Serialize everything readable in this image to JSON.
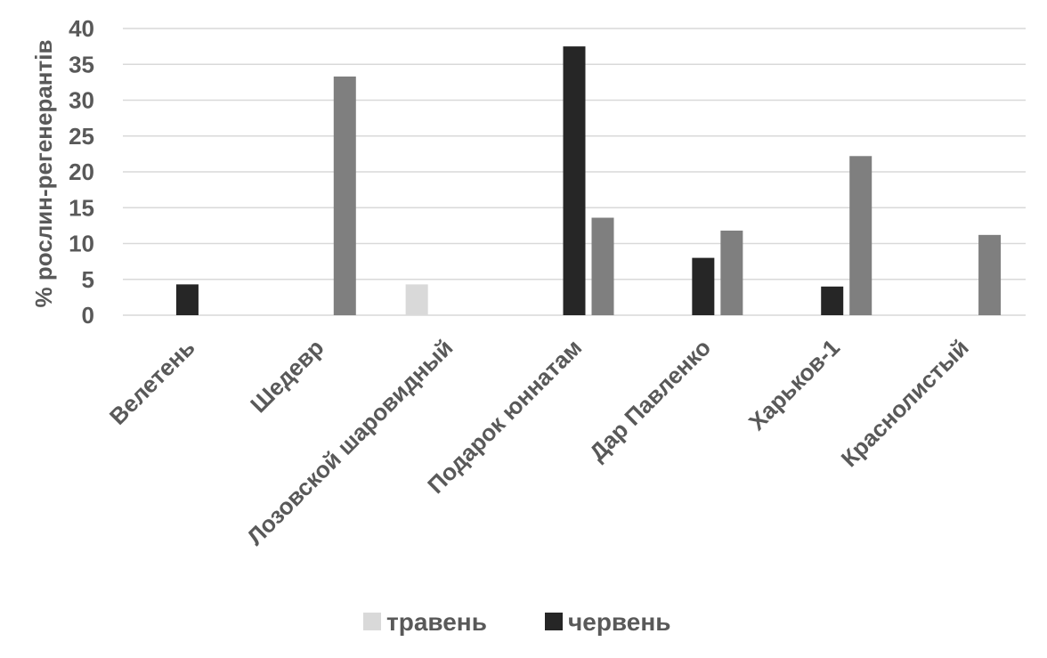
{
  "chart_data": {
    "type": "bar",
    "title": "",
    "xlabel": "",
    "ylabel": "% рослин-регенерантів",
    "ylim": [
      0,
      40
    ],
    "yticks": [
      0,
      5,
      10,
      15,
      20,
      25,
      30,
      35,
      40
    ],
    "grid": true,
    "legend_position": "bottom",
    "categories": [
      "Велетень",
      "Шедевр",
      "Лозовской шаровидный",
      "Подарок юннатам",
      "Дар Павленко",
      "Харьков-1",
      "Краснолистый"
    ],
    "series": [
      {
        "name": "травень",
        "color": "#d9d9d9",
        "values": [
          0,
          0,
          4.3,
          0,
          0,
          0,
          0
        ]
      },
      {
        "name": "червень",
        "color": "#262626",
        "values": [
          4.3,
          0,
          0,
          37.5,
          8.0,
          4.0,
          0
        ]
      },
      {
        "name": "",
        "color": "#7f7f7f",
        "values": [
          0,
          33.3,
          0,
          13.6,
          11.8,
          22.2,
          11.2
        ]
      }
    ]
  }
}
